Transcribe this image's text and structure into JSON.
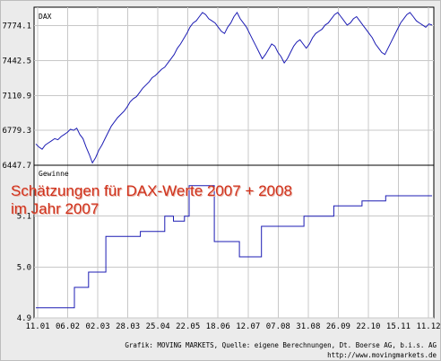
{
  "chart_data": [
    {
      "type": "line",
      "label": "DAX",
      "ylim": [
        6447.7,
        7950
      ],
      "yticks": [
        "6447.7",
        "6779.3",
        "7110.9",
        "7442.5",
        "7774.1"
      ],
      "xticks": [
        "11.01",
        "06.02",
        "02.03",
        "28.03",
        "25.04",
        "22.05",
        "18.06",
        "12.07",
        "07.08",
        "31.08",
        "26.09",
        "22.10",
        "15.11",
        "11.12"
      ],
      "grid": true,
      "color": "#1c1cb4",
      "x": [
        0,
        2,
        4,
        6,
        8,
        10,
        12,
        14,
        16,
        18,
        20,
        22,
        24,
        26,
        28,
        30,
        32,
        34,
        36,
        38,
        40,
        42,
        44,
        46,
        48,
        50,
        52,
        54,
        56,
        58,
        60,
        62,
        64,
        66,
        68,
        70,
        72,
        74,
        76,
        78,
        80,
        82,
        84,
        86,
        88,
        90,
        92,
        94,
        96,
        98,
        100,
        102,
        104,
        106,
        108,
        110,
        112,
        114,
        116,
        118,
        120,
        122,
        124,
        126,
        128,
        130,
        132,
        134,
        136,
        138,
        140,
        142,
        144,
        146,
        148,
        150,
        152,
        154,
        156,
        158,
        160,
        162,
        164,
        166,
        168,
        170,
        172,
        174,
        176,
        178,
        180,
        182,
        184,
        186,
        188,
        190,
        192,
        194,
        196,
        198,
        200,
        202,
        204,
        206,
        208,
        210,
        212,
        214,
        216,
        218,
        220,
        222,
        224,
        226,
        228,
        230,
        232,
        234,
        236,
        238,
        240,
        242,
        244,
        246,
        248,
        250,
        252
      ],
      "values": [
        6650,
        6620,
        6600,
        6640,
        6660,
        6680,
        6700,
        6690,
        6720,
        6740,
        6760,
        6790,
        6780,
        6800,
        6740,
        6700,
        6620,
        6550,
        6470,
        6520,
        6590,
        6640,
        6700,
        6760,
        6820,
        6860,
        6900,
        6930,
        6960,
        7000,
        7050,
        7080,
        7100,
        7140,
        7180,
        7210,
        7240,
        7280,
        7300,
        7330,
        7360,
        7380,
        7420,
        7460,
        7500,
        7560,
        7600,
        7650,
        7700,
        7760,
        7800,
        7820,
        7860,
        7900,
        7880,
        7840,
        7820,
        7800,
        7760,
        7720,
        7700,
        7760,
        7800,
        7860,
        7900,
        7840,
        7800,
        7760,
        7700,
        7640,
        7580,
        7520,
        7460,
        7500,
        7550,
        7600,
        7580,
        7520,
        7480,
        7420,
        7460,
        7520,
        7580,
        7620,
        7640,
        7600,
        7560,
        7600,
        7660,
        7700,
        7720,
        7740,
        7780,
        7800,
        7840,
        7880,
        7900,
        7860,
        7820,
        7780,
        7800,
        7840,
        7860,
        7820,
        7780,
        7740,
        7700,
        7660,
        7600,
        7560,
        7520,
        7500,
        7560,
        7620,
        7680,
        7740,
        7800,
        7840,
        7880,
        7900,
        7860,
        7820,
        7800,
        7780,
        7760,
        7790,
        7780
      ]
    },
    {
      "type": "line",
      "step": true,
      "label": "Gewinne",
      "ylim": [
        4.9,
        5.2
      ],
      "yticks": [
        "4.9",
        "5.0",
        "5.1"
      ],
      "xticks": [
        "11.01",
        "06.02",
        "02.03",
        "28.03",
        "25.04",
        "22.05",
        "18.06",
        "12.07",
        "07.08",
        "31.08",
        "26.09",
        "22.10",
        "15.11",
        "11.12"
      ],
      "grid": true,
      "color": "#1c1cb4",
      "x": [
        0,
        24,
        24.5,
        25,
        33,
        33.5,
        44,
        44.5,
        66,
        66.5,
        81,
        81.5,
        82,
        87,
        87.5,
        94,
        94.5,
        97,
        97.5,
        98,
        113,
        113.5,
        129,
        129.5,
        143,
        143.5,
        170,
        170.5,
        189,
        189.5,
        207,
        207.5,
        222,
        222.5,
        236,
        236.5,
        252
      ],
      "values": [
        4.92,
        4.92,
        4.96,
        4.96,
        4.96,
        4.99,
        4.99,
        5.06,
        5.06,
        5.07,
        5.07,
        5.07,
        5.1,
        5.1,
        5.09,
        5.09,
        5.1,
        5.1,
        5.16,
        5.16,
        5.16,
        5.05,
        5.05,
        5.02,
        5.02,
        5.08,
        5.08,
        5.1,
        5.1,
        5.12,
        5.12,
        5.13,
        5.13,
        5.14,
        5.14,
        5.14,
        5.14
      ]
    }
  ],
  "overlay_title_text": "Schätzungen für DAX-Werte 2007 + 2008\nim Jahr 2007",
  "footer": {
    "source_text": "Grafik: MOVING MARKETS, Quelle: eigene Berechnungen, Dt. Boerse AG, b.i.s. AG",
    "url_text": "http://www.movingmarkets.de"
  }
}
